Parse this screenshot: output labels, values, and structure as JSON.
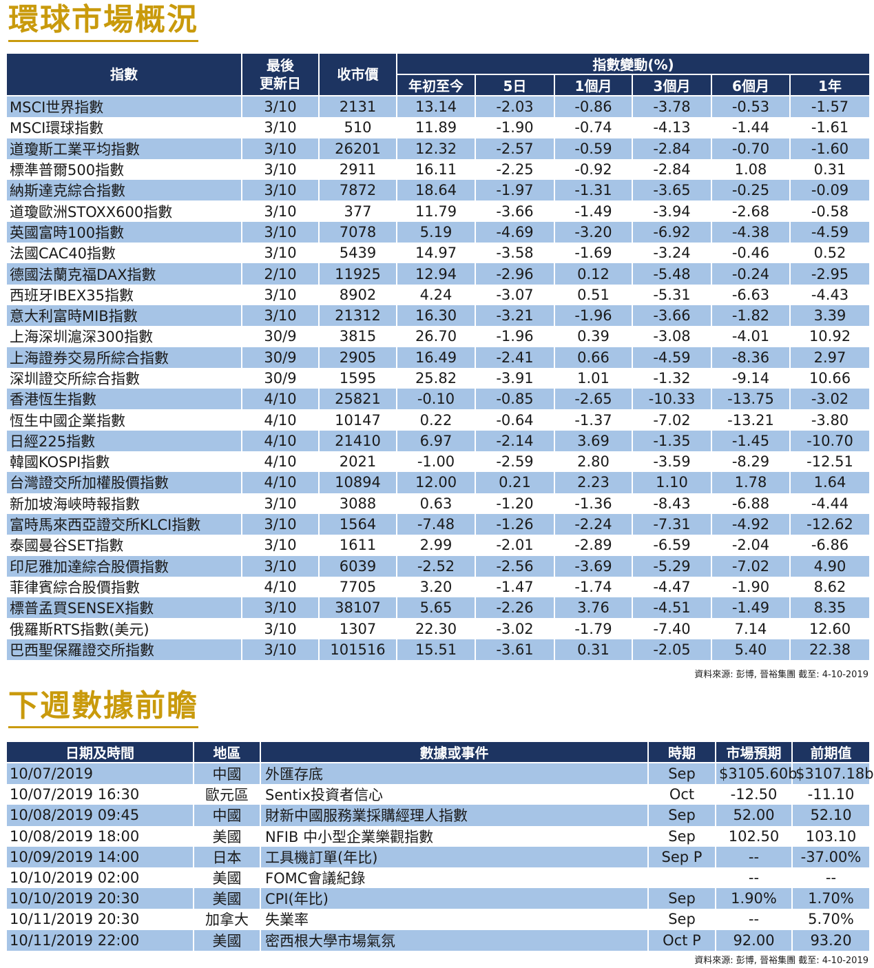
{
  "global_market": {
    "title": "環球市場概況",
    "headers": {
      "index": "指數",
      "last_update": [
        "最後",
        "更新日"
      ],
      "close": "收市價",
      "change_group": "指數變動(%)",
      "periods": [
        "年初至今",
        "5日",
        "1個月",
        "3個月",
        "6個月",
        "1年"
      ]
    },
    "rows": [
      [
        "MSCI世界指數",
        "3/10",
        "2131",
        "13.14",
        "-2.03",
        "-0.86",
        "-3.78",
        "-0.53",
        "-1.57"
      ],
      [
        "MSCI環球指數",
        "3/10",
        "510",
        "11.89",
        "-1.90",
        "-0.74",
        "-4.13",
        "-1.44",
        "-1.61"
      ],
      [
        "道瓊斯工業平均指數",
        "3/10",
        "26201",
        "12.32",
        "-2.57",
        "-0.59",
        "-2.84",
        "-0.70",
        "-1.60"
      ],
      [
        "標準普爾500指數",
        "3/10",
        "2911",
        "16.11",
        "-2.25",
        "-0.92",
        "-2.84",
        "1.08",
        "0.31"
      ],
      [
        "納斯達克綜合指數",
        "3/10",
        "7872",
        "18.64",
        "-1.97",
        "-1.31",
        "-3.65",
        "-0.25",
        "-0.09"
      ],
      [
        "道瓊歐洲STOXX600指數",
        "3/10",
        "377",
        "11.79",
        "-3.66",
        "-1.49",
        "-3.94",
        "-2.68",
        "-0.58"
      ],
      [
        "英國富時100指數",
        "3/10",
        "7078",
        "5.19",
        "-4.69",
        "-3.20",
        "-6.92",
        "-4.38",
        "-4.59"
      ],
      [
        "法國CAC40指數",
        "3/10",
        "5439",
        "14.97",
        "-3.58",
        "-1.69",
        "-3.24",
        "-0.46",
        "0.52"
      ],
      [
        "德國法蘭克福DAX指數",
        "2/10",
        "11925",
        "12.94",
        "-2.96",
        "0.12",
        "-5.48",
        "-0.24",
        "-2.95"
      ],
      [
        "西班牙IBEX35指數",
        "3/10",
        "8902",
        "4.24",
        "-3.07",
        "0.51",
        "-5.31",
        "-6.63",
        "-4.43"
      ],
      [
        "意大利富時MIB指數",
        "3/10",
        "21312",
        "16.30",
        "-3.21",
        "-1.96",
        "-3.66",
        "-1.82",
        "3.39"
      ],
      [
        "上海深圳滬深300指數",
        "30/9",
        "3815",
        "26.70",
        "-1.96",
        "0.39",
        "-3.08",
        "-4.01",
        "10.92"
      ],
      [
        "上海證券交易所綜合指數",
        "30/9",
        "2905",
        "16.49",
        "-2.41",
        "0.66",
        "-4.59",
        "-8.36",
        "2.97"
      ],
      [
        "深圳證交所綜合指數",
        "30/9",
        "1595",
        "25.82",
        "-3.91",
        "1.01",
        "-1.32",
        "-9.14",
        "10.66"
      ],
      [
        "香港恆生指數",
        "4/10",
        "25821",
        "-0.10",
        "-0.85",
        "-2.65",
        "-10.33",
        "-13.75",
        "-3.02"
      ],
      [
        "恆生中國企業指數",
        "4/10",
        "10147",
        "0.22",
        "-0.64",
        "-1.37",
        "-7.02",
        "-13.21",
        "-3.80"
      ],
      [
        "日經225指數",
        "4/10",
        "21410",
        "6.97",
        "-2.14",
        "3.69",
        "-1.35",
        "-1.45",
        "-10.70"
      ],
      [
        "韓國KOSPI指數",
        "4/10",
        "2021",
        "-1.00",
        "-2.59",
        "2.80",
        "-3.59",
        "-8.29",
        "-12.51"
      ],
      [
        "台灣證交所加權股價指數",
        "4/10",
        "10894",
        "12.00",
        "0.21",
        "2.23",
        "1.10",
        "1.78",
        "1.64"
      ],
      [
        "新加坡海峽時報指數",
        "3/10",
        "3088",
        "0.63",
        "-1.20",
        "-1.36",
        "-8.43",
        "-6.88",
        "-4.44"
      ],
      [
        "富時馬來西亞證交所KLCI指數",
        "3/10",
        "1564",
        "-7.48",
        "-1.26",
        "-2.24",
        "-7.31",
        "-4.92",
        "-12.62"
      ],
      [
        "泰國曼谷SET指數",
        "3/10",
        "1611",
        "2.99",
        "-2.01",
        "-2.89",
        "-6.59",
        "-2.04",
        "-6.86"
      ],
      [
        "印尼雅加達綜合股價指數",
        "3/10",
        "6039",
        "-2.52",
        "-2.56",
        "-3.69",
        "-5.29",
        "-7.02",
        "4.90"
      ],
      [
        "菲律賓綜合股價指數",
        "4/10",
        "7705",
        "3.20",
        "-1.47",
        "-1.74",
        "-4.47",
        "-1.90",
        "8.62"
      ],
      [
        "標普孟買SENSEX指數",
        "3/10",
        "38107",
        "5.65",
        "-2.26",
        "3.76",
        "-4.51",
        "-1.49",
        "8.35"
      ],
      [
        "俄羅斯RTS指數(美元)",
        "3/10",
        "1307",
        "22.30",
        "-3.02",
        "-1.79",
        "-7.40",
        "7.14",
        "12.60"
      ],
      [
        "巴西聖保羅證交所指數",
        "3/10",
        "101516",
        "15.51",
        "-3.61",
        "0.31",
        "-2.05",
        "5.40",
        "22.38"
      ]
    ],
    "source": "資料來源: 彭博, 晉裕集團 截至: 4-10-2019"
  },
  "next_week": {
    "title": "下週數據前瞻",
    "headers": [
      "日期及時間",
      "地區",
      "數據或事件",
      "時期",
      "市場預期",
      "前期值"
    ],
    "rows": [
      [
        "10/07/2019",
        "中國",
        "外匯存底",
        "Sep",
        "$3105.60b",
        "$3107.18b"
      ],
      [
        "10/07/2019 16:30",
        "歐元區",
        "Sentix投資者信心",
        "Oct",
        "-12.50",
        "-11.10"
      ],
      [
        "10/08/2019 09:45",
        "中國",
        "財新中國服務業採購經理人指數",
        "Sep",
        "52.00",
        "52.10"
      ],
      [
        "10/08/2019 18:00",
        "美國",
        "NFIB 中小型企業樂觀指數",
        "Sep",
        "102.50",
        "103.10"
      ],
      [
        "10/09/2019 14:00",
        "日本",
        "工具機訂單(年比)",
        "Sep P",
        "--",
        "-37.00%"
      ],
      [
        "10/10/2019 02:00",
        "美國",
        "FOMC會議紀錄",
        "",
        "--",
        "--"
      ],
      [
        "10/10/2019 20:30",
        "美國",
        "CPI(年比)",
        "Sep",
        "1.90%",
        "1.70%"
      ],
      [
        "10/11/2019 20:30",
        "加拿大",
        "失業率",
        "Sep",
        "--",
        "5.70%"
      ],
      [
        "10/11/2019 22:00",
        "美國",
        "密西根大學市場氣氛",
        "Oct P",
        "92.00",
        "93.20"
      ]
    ],
    "source": "資料來源: 彭博, 晉裕集團 截至: 4-10-2019"
  }
}
